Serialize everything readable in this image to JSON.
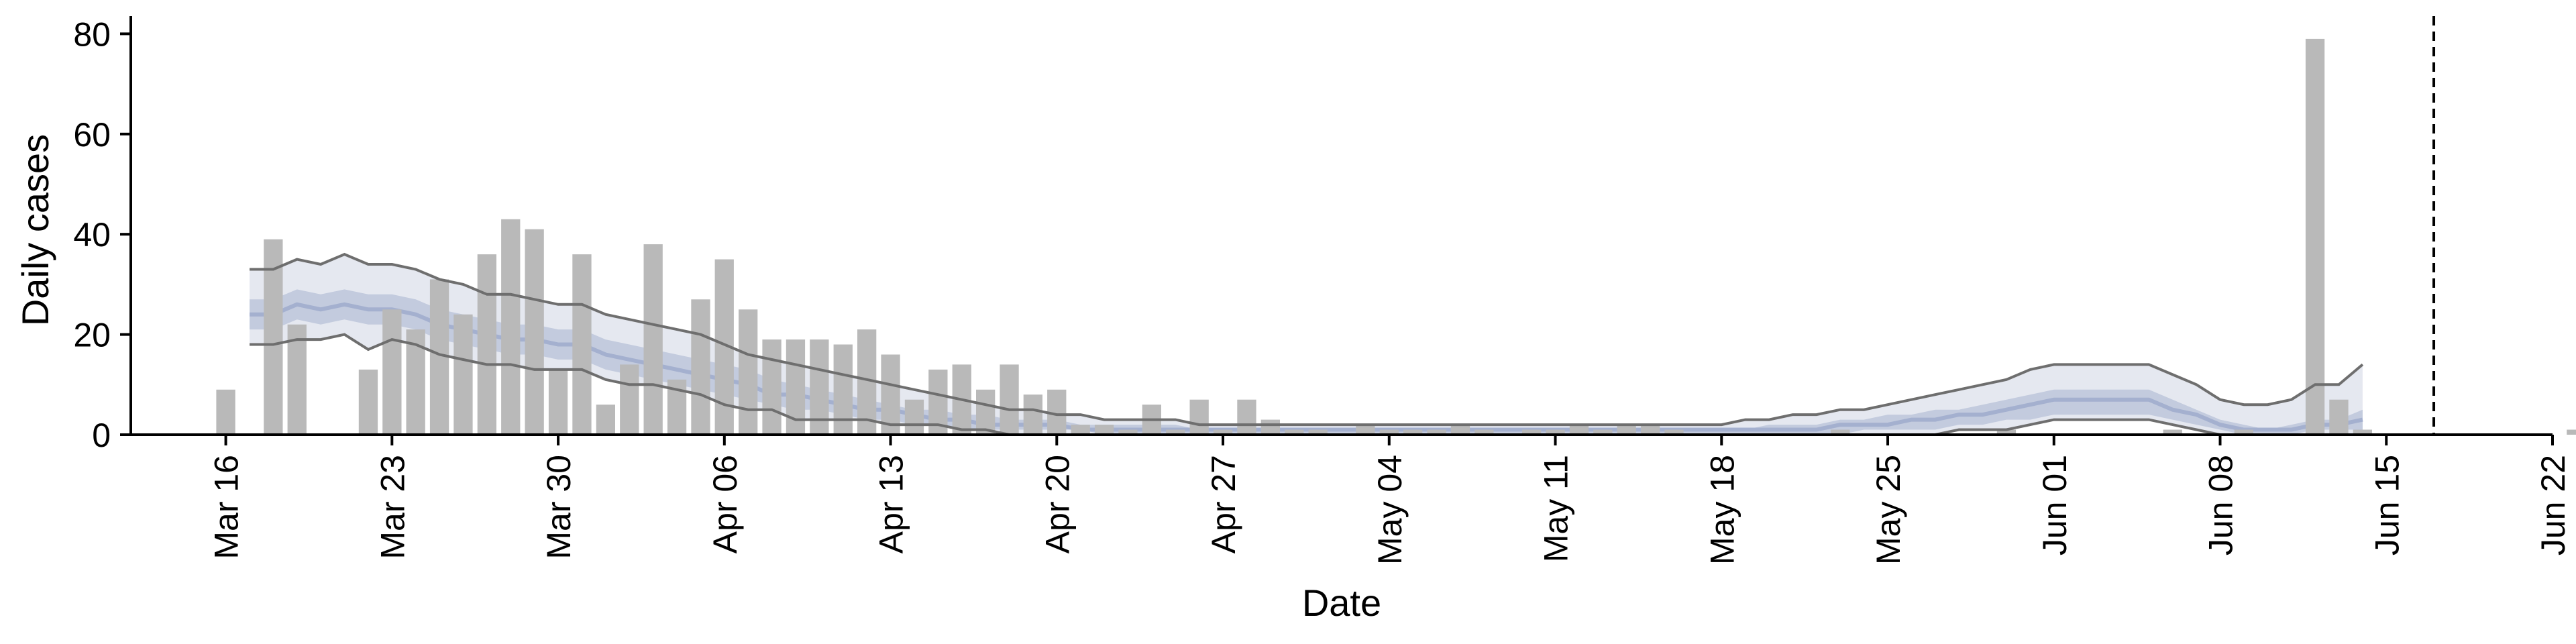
{
  "chart_data": {
    "type": "bar",
    "xlabel": "Date",
    "ylabel": "Daily cases",
    "ylim": [
      0,
      83
    ],
    "xlim": [
      "2020-03-12",
      "2020-06-22"
    ],
    "yticks": [
      0,
      20,
      40,
      60,
      80
    ],
    "xticks": [
      {
        "date": "2020-03-16",
        "label": "Mar 16"
      },
      {
        "date": "2020-03-23",
        "label": "Mar 23"
      },
      {
        "date": "2020-03-30",
        "label": "Mar 30"
      },
      {
        "date": "2020-04-06",
        "label": "Apr 06"
      },
      {
        "date": "2020-04-13",
        "label": "Apr 13"
      },
      {
        "date": "2020-04-20",
        "label": "Apr 20"
      },
      {
        "date": "2020-04-27",
        "label": "Apr 27"
      },
      {
        "date": "2020-05-04",
        "label": "May 04"
      },
      {
        "date": "2020-05-11",
        "label": "May 11"
      },
      {
        "date": "2020-05-18",
        "label": "May 18"
      },
      {
        "date": "2020-05-25",
        "label": "May 25"
      },
      {
        "date": "2020-06-01",
        "label": "Jun 01"
      },
      {
        "date": "2020-06-08",
        "label": "Jun 08"
      },
      {
        "date": "2020-06-15",
        "label": "Jun 15"
      },
      {
        "date": "2020-06-22",
        "label": "Jun 22"
      }
    ],
    "vline_date": "2020-06-17",
    "grid": false,
    "legend": "none",
    "colors": {
      "bars": "#b9b9b9",
      "band_outer": "#e5e8f0",
      "band_inner": "#c3cbde",
      "median": "#a4b0cf",
      "bound_lines": "#6e6e6e",
      "vline": "#000000"
    },
    "daily_cases": {
      "start_date": "2020-03-16",
      "values": [
        9,
        0,
        39,
        22,
        0,
        0,
        13,
        25,
        21,
        31,
        24,
        36,
        43,
        41,
        13,
        36,
        6,
        14,
        38,
        11,
        27,
        35,
        25,
        19,
        19,
        19,
        18,
        21,
        16,
        7,
        13,
        14,
        9,
        14,
        8,
        9,
        2,
        2,
        1,
        6,
        1,
        7,
        1,
        7,
        3,
        1,
        1,
        0,
        2,
        1,
        1,
        1,
        2,
        1,
        0,
        1,
        1,
        2,
        1,
        2,
        2,
        1,
        0,
        0,
        0,
        0,
        0,
        0,
        1,
        0,
        0,
        0,
        0,
        0,
        0,
        1,
        0,
        0,
        0,
        0,
        0,
        0,
        1,
        0,
        0,
        1,
        0,
        0,
        79,
        7,
        1,
        0,
        0,
        0,
        0,
        0,
        0,
        0,
        0,
        1,
        0,
        0,
        0,
        1
      ]
    },
    "estimate": {
      "start_date": "2020-03-17",
      "upper": [
        33,
        33,
        35,
        34,
        36,
        34,
        34,
        33,
        31,
        30,
        28,
        28,
        27,
        26,
        26,
        24,
        23,
        22,
        21,
        20,
        18,
        16,
        15,
        14,
        13,
        12,
        11,
        10,
        9,
        8,
        7,
        6,
        5,
        5,
        4,
        4,
        3,
        3,
        3,
        3,
        2,
        2,
        2,
        2,
        2,
        2,
        2,
        2,
        2,
        2,
        2,
        2,
        2,
        2,
        2,
        2,
        2,
        2,
        2,
        2,
        2,
        2,
        2,
        3,
        3,
        4,
        4,
        5,
        5,
        6,
        7,
        8,
        9,
        10,
        11,
        13,
        14,
        14,
        14,
        14,
        14,
        12,
        10,
        7,
        6,
        6,
        7,
        10,
        10,
        14
      ],
      "inner_upper": [
        27,
        27,
        29,
        28,
        29,
        28,
        28,
        27,
        25,
        24,
        23,
        22,
        22,
        21,
        21,
        19,
        18,
        17,
        16,
        15,
        14,
        13,
        11,
        10,
        9,
        8,
        7,
        6,
        5,
        5,
        4,
        4,
        3,
        3,
        3,
        2,
        2,
        2,
        2,
        2,
        1,
        1,
        1,
        1,
        1,
        1,
        1,
        1,
        1,
        1,
        1,
        1,
        1,
        1,
        1,
        1,
        1,
        1,
        1,
        1,
        1,
        1,
        1,
        1,
        2,
        2,
        2,
        3,
        3,
        4,
        4,
        5,
        5,
        6,
        7,
        8,
        9,
        9,
        9,
        9,
        9,
        7,
        5,
        3,
        2,
        1,
        2,
        3,
        3,
        5
      ],
      "median": [
        24,
        24,
        26,
        25,
        26,
        25,
        25,
        24,
        22,
        21,
        20,
        19,
        19,
        18,
        18,
        16,
        15,
        14,
        13,
        12,
        11,
        10,
        8,
        8,
        7,
        6,
        5,
        5,
        4,
        3,
        3,
        2,
        2,
        2,
        2,
        1,
        1,
        1,
        1,
        1,
        1,
        1,
        1,
        1,
        1,
        1,
        1,
        1,
        1,
        1,
        1,
        1,
        1,
        1,
        1,
        1,
        1,
        1,
        1,
        1,
        1,
        1,
        1,
        1,
        1,
        1,
        1,
        2,
        2,
        2,
        3,
        3,
        4,
        4,
        5,
        6,
        7,
        7,
        7,
        7,
        7,
        5,
        4,
        2,
        1,
        1,
        1,
        2,
        2,
        3
      ],
      "inner_lower": [
        21,
        21,
        23,
        22,
        23,
        22,
        22,
        21,
        19,
        18,
        17,
        16,
        16,
        15,
        15,
        13,
        12,
        11,
        10,
        9,
        8,
        7,
        6,
        5,
        5,
        4,
        3,
        3,
        2,
        2,
        1,
        1,
        1,
        1,
        1,
        1,
        0,
        0,
        0,
        0,
        0,
        0,
        0,
        0,
        0,
        0,
        0,
        0,
        0,
        0,
        0,
        0,
        0,
        0,
        0,
        0,
        0,
        0,
        0,
        0,
        0,
        0,
        0,
        0,
        0,
        0,
        0,
        0,
        1,
        1,
        1,
        1,
        2,
        2,
        3,
        3,
        4,
        4,
        4,
        4,
        4,
        3,
        2,
        1,
        0,
        0,
        0,
        1,
        1,
        1
      ],
      "lower": [
        18,
        18,
        19,
        19,
        20,
        17,
        19,
        18,
        16,
        15,
        14,
        14,
        13,
        13,
        13,
        11,
        10,
        10,
        9,
        8,
        6,
        5,
        5,
        3,
        3,
        3,
        3,
        2,
        2,
        2,
        1,
        1,
        0,
        0,
        0,
        0,
        0,
        0,
        0,
        0,
        0,
        0,
        0,
        0,
        0,
        0,
        0,
        0,
        0,
        0,
        0,
        0,
        0,
        0,
        0,
        0,
        0,
        0,
        0,
        0,
        0,
        0,
        0,
        0,
        0,
        0,
        0,
        0,
        0,
        0,
        0,
        0,
        1,
        1,
        1,
        2,
        3,
        3,
        3,
        3,
        3,
        2,
        1,
        0,
        0,
        0,
        0,
        0,
        0,
        0
      ]
    }
  }
}
